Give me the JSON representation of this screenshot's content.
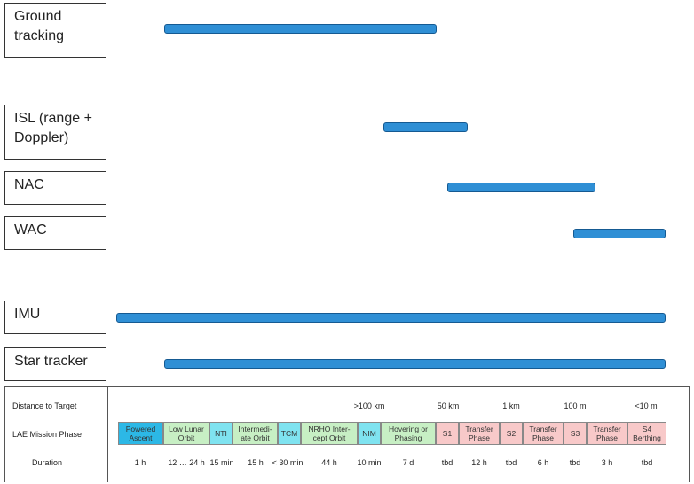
{
  "sensors": [
    {
      "label": "Ground tracking"
    },
    {
      "label": "ISL (range + Doppler)"
    },
    {
      "label": "NAC"
    },
    {
      "label": "WAC"
    },
    {
      "label": "IMU"
    },
    {
      "label": "Star tracker"
    }
  ],
  "legend": {
    "distance_label": "Distance to Target",
    "phase_label": "LAE Mission Phase",
    "duration_label": "Duration",
    "distances": [
      ">100 km",
      "50 km",
      "1 km",
      "100 m",
      "<10 m"
    ],
    "phases": [
      {
        "label": "Powered Ascent",
        "duration": "1 h",
        "color": "#2cb8e6"
      },
      {
        "label": "Low Lunar Orbit",
        "duration": "12 … 24 h",
        "color": "#c7efc4"
      },
      {
        "label": "NTI",
        "duration": "15 min",
        "color": "#7fe3f0"
      },
      {
        "label": "Intermedi-ate Orbit",
        "duration": "15 h",
        "color": "#c7efc4"
      },
      {
        "label": "TCM",
        "duration": "< 30 min",
        "color": "#7fe3f0"
      },
      {
        "label": "NRHO Inter-cept Orbit",
        "duration": "44 h",
        "color": "#c7efc4"
      },
      {
        "label": "NIM",
        "duration": "10 min",
        "color": "#7fe3f0"
      },
      {
        "label": "Hovering or Phasing",
        "duration": "7 d",
        "color": "#c7efc4"
      },
      {
        "label": "S1",
        "duration": "tbd",
        "color": "#f8c9c9"
      },
      {
        "label": "Transfer Phase",
        "duration": "12 h",
        "color": "#f8c9c9"
      },
      {
        "label": "S2",
        "duration": "tbd",
        "color": "#f8c9c9"
      },
      {
        "label": "Transfer Phase",
        "duration": "6 h",
        "color": "#f8c9c9"
      },
      {
        "label": "S3",
        "duration": "tbd",
        "color": "#f8c9c9"
      },
      {
        "label": "Transfer Phase",
        "duration": "3 h",
        "color": "#f8c9c9"
      },
      {
        "label": "S4 Berthing",
        "duration": "tbd",
        "color": "#f8c9c9"
      }
    ]
  }
}
